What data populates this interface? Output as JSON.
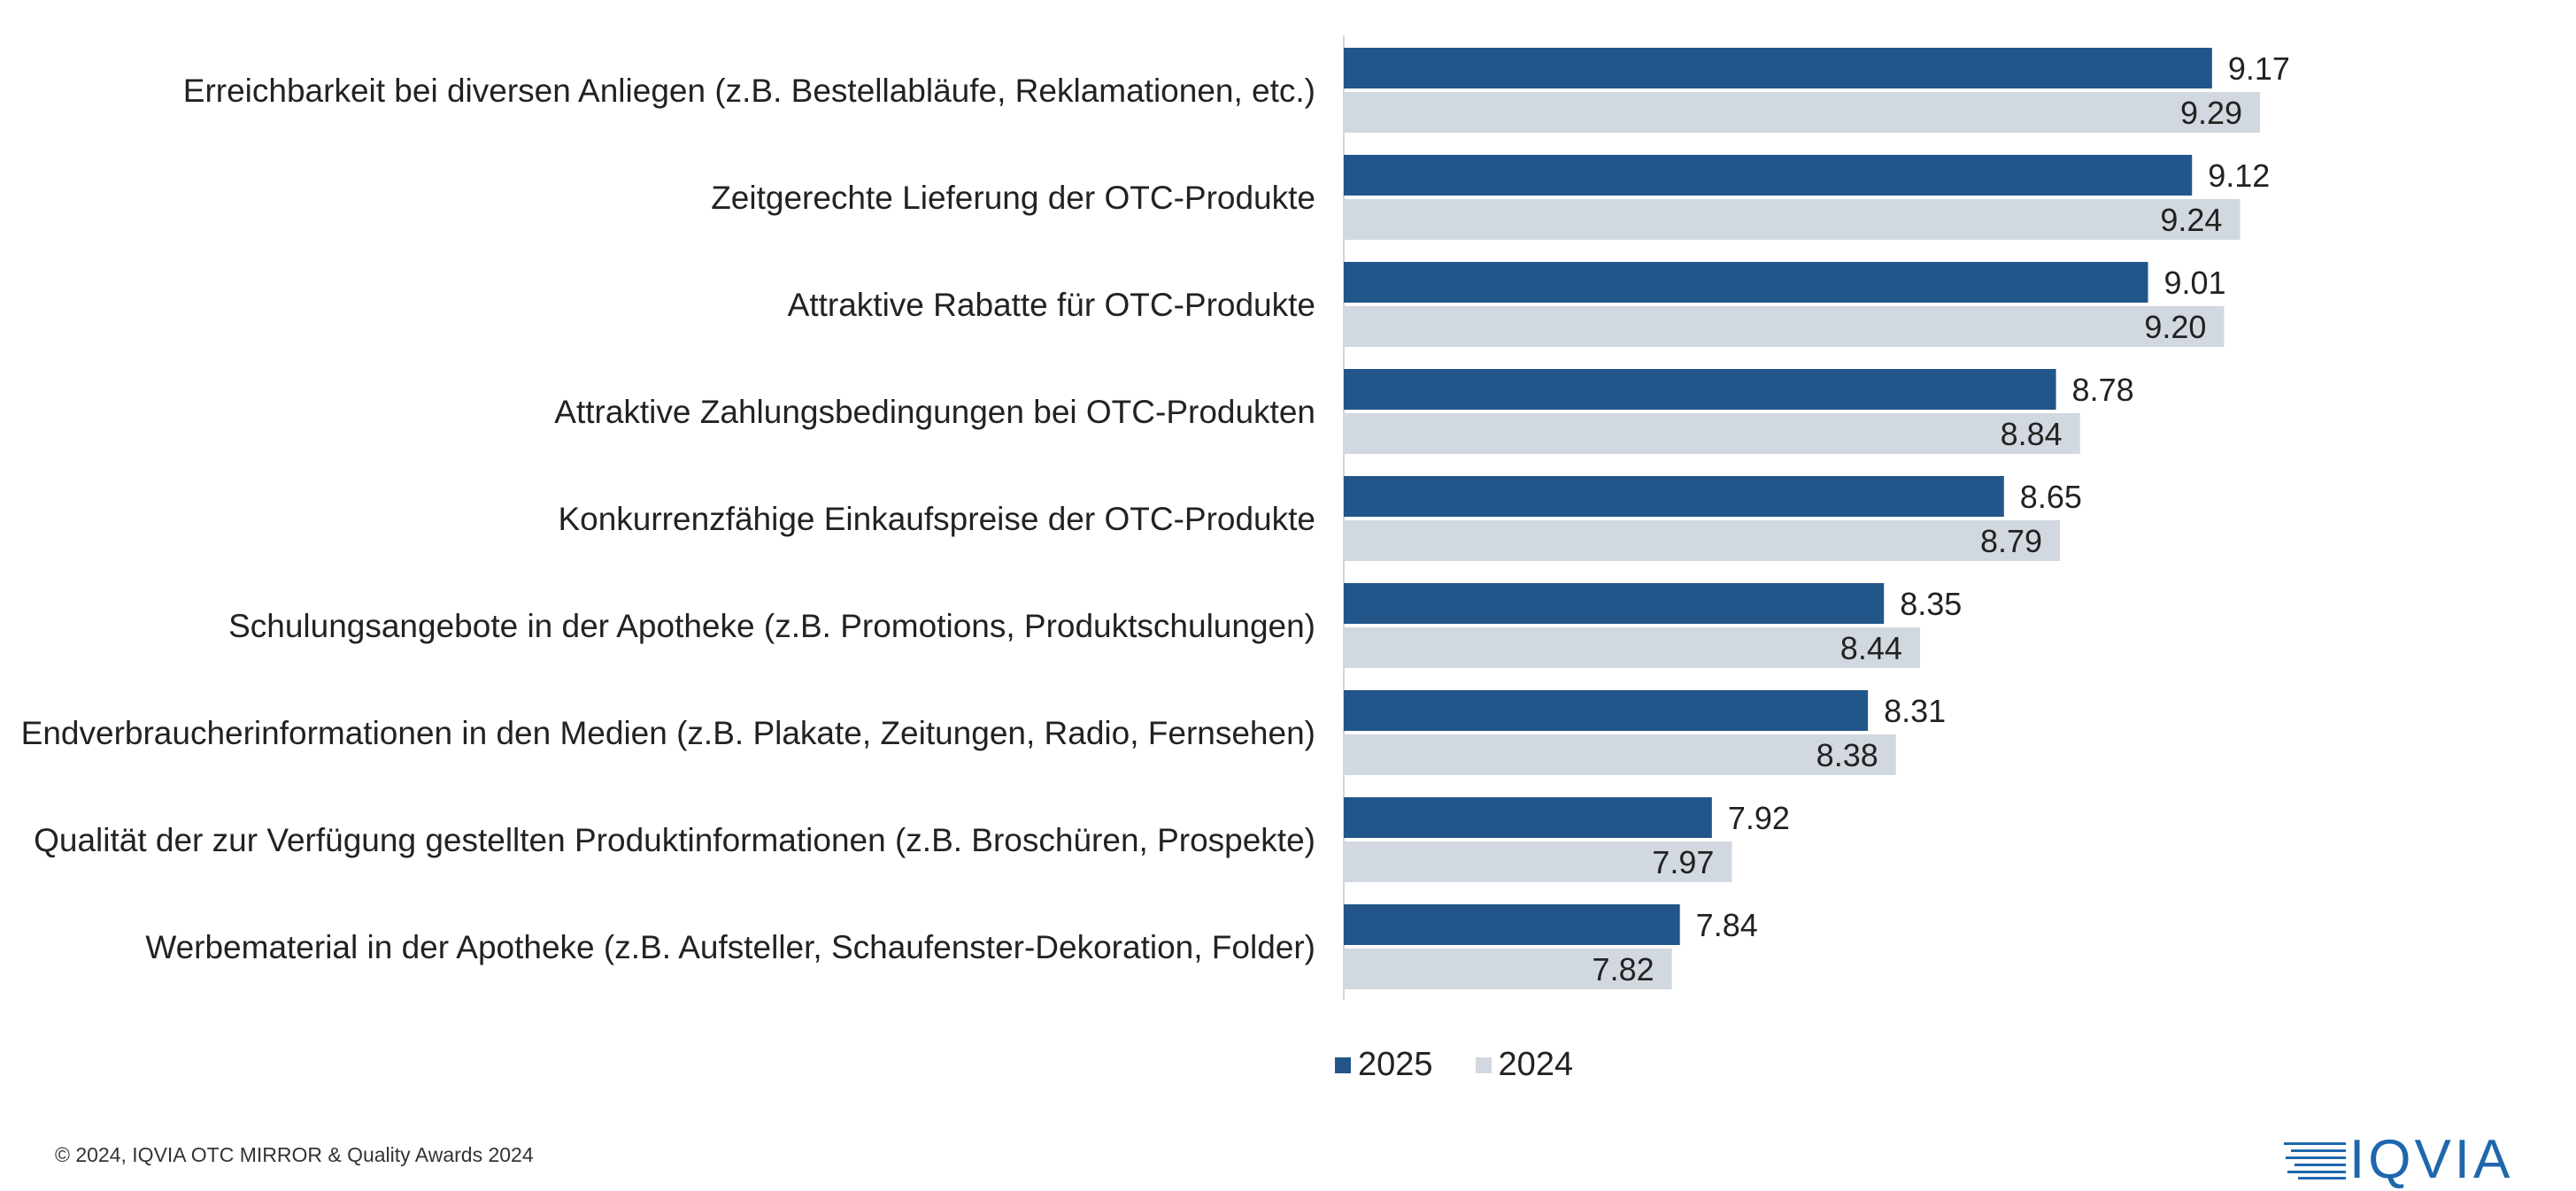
{
  "colors": {
    "series_2025": "#22568a",
    "series_2024": "#d2d8df",
    "axis_line": "#cfd6de",
    "text": "#222222",
    "logo": "#1f67ad"
  },
  "chart_data": {
    "type": "bar",
    "orientation": "horizontal",
    "categories": [
      "Erreichbarkeit bei diversen Anliegen (z.B. Bestellabläufe, Reklamationen, etc.)",
      "Zeitgerechte Lieferung der OTC-Produkte",
      "Attraktive Rabatte für OTC-Produkte",
      "Attraktive Zahlungsbedingungen bei OTC-Produkten",
      "Konkurrenzfähige Einkaufspreise der OTC-Produkte",
      "Schulungsangebote in der Apotheke (z.B. Promotions, Produktschulungen)",
      "Endverbraucherinformationen in den Medien (z.B. Plakate, Zeitungen, Radio, Fernsehen)",
      "Qualität der zur Verfügung gestellten Produktinformationen (z.B. Broschüren, Prospekte)",
      "Werbematerial in der Apotheke (z.B. Aufsteller, Schaufenster-Dekoration, Folder)"
    ],
    "series": [
      {
        "name": "2025",
        "values": [
          9.17,
          9.12,
          9.01,
          8.78,
          8.65,
          8.35,
          8.31,
          7.92,
          7.84
        ],
        "labels": [
          "9.17",
          "9.12",
          "9.01",
          "8.78",
          "8.65",
          "8.35",
          "8.31",
          "7.92",
          "7.84"
        ]
      },
      {
        "name": "2024",
        "values": [
          9.29,
          9.24,
          9.2,
          8.84,
          8.79,
          8.44,
          8.38,
          7.97,
          7.82
        ],
        "labels": [
          "9.29",
          "9.24",
          "9.20",
          "8.84",
          "8.79",
          "8.44",
          "8.38",
          "7.97",
          "7.82"
        ]
      }
    ],
    "xlim": [
      7.0,
      9.5
    ],
    "grid": false,
    "legend_position": "bottom"
  },
  "legend": {
    "items": [
      "2025",
      "2024"
    ]
  },
  "footer": {
    "copyright": "© 2024, IQVIA OTC MIRROR & Quality Awards 2024"
  },
  "logo": {
    "text": "IQVIA"
  }
}
